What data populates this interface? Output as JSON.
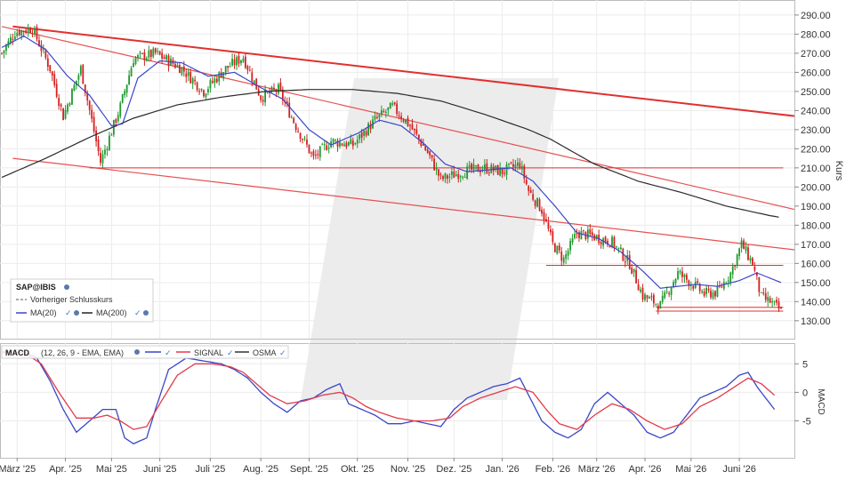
{
  "chart_data": [
    {
      "type": "candlestick",
      "symbol": "SAP@IBIS",
      "ylabel": "Kurs",
      "ylim": [
        122,
        296
      ],
      "y_ticks": [
        130,
        140,
        150,
        160,
        170,
        180,
        190,
        200,
        210,
        220,
        230,
        240,
        250,
        260,
        270,
        280,
        290
      ],
      "y_tick_labels": [
        "130.00",
        "140.00",
        "150.00",
        "160.00",
        "170.00",
        "180.00",
        "190.00",
        "200.00",
        "210.00",
        "220.00",
        "230.00",
        "240.00",
        "250.00",
        "260.00",
        "270.00",
        "280.00",
        "290.00"
      ],
      "x_tick_labels": [
        "März '25",
        "Apr. '25",
        "Mai '25",
        "Juni '25",
        "Juli '25",
        "Aug. '25",
        "Sept. '25",
        "Okt. '25",
        "Nov. '25",
        "Dez. '25",
        "Jan. '26",
        "Feb. '26",
        "März '26",
        "Apr. '26",
        "Mai '26",
        "Juni '26"
      ],
      "x_tick_index": [
        7,
        29,
        50,
        72,
        95,
        118,
        140,
        162,
        185,
        206,
        228,
        251,
        271,
        293,
        314,
        336
      ],
      "session_count": 356,
      "legend": {
        "symbol": "SAP@IBIS",
        "prev_close": "Vorheriger Schlusskurs",
        "ma20": "MA(20)",
        "ma200": "MA(200)"
      },
      "price_path": [
        [
          0,
          270
        ],
        [
          6,
          281
        ],
        [
          14,
          283
        ],
        [
          22,
          262
        ],
        [
          28,
          237
        ],
        [
          36,
          262
        ],
        [
          45,
          213
        ],
        [
          54,
          242
        ],
        [
          60,
          267
        ],
        [
          70,
          270
        ],
        [
          82,
          262
        ],
        [
          92,
          250
        ],
        [
          102,
          262
        ],
        [
          110,
          268
        ],
        [
          118,
          247
        ],
        [
          126,
          251
        ],
        [
          134,
          232
        ],
        [
          142,
          215
        ],
        [
          150,
          224
        ],
        [
          160,
          222
        ],
        [
          170,
          235
        ],
        [
          178,
          242
        ],
        [
          186,
          232
        ],
        [
          194,
          218
        ],
        [
          200,
          204
        ],
        [
          210,
          208
        ],
        [
          220,
          210
        ],
        [
          228,
          208
        ],
        [
          236,
          212
        ],
        [
          240,
          198
        ],
        [
          246,
          188
        ],
        [
          251,
          170
        ],
        [
          256,
          162
        ],
        [
          262,
          176
        ],
        [
          270,
          174
        ],
        [
          278,
          171
        ],
        [
          286,
          160
        ],
        [
          292,
          143
        ],
        [
          300,
          138
        ],
        [
          308,
          155
        ],
        [
          316,
          148
        ],
        [
          320,
          144
        ],
        [
          326,
          145
        ],
        [
          332,
          155
        ],
        [
          337,
          170
        ],
        [
          342,
          160
        ],
        [
          346,
          142
        ],
        [
          350,
          140
        ],
        [
          355,
          135
        ]
      ],
      "ma20_path": [
        [
          0,
          273
        ],
        [
          10,
          279
        ],
        [
          20,
          272
        ],
        [
          30,
          258
        ],
        [
          40,
          248
        ],
        [
          50,
          232
        ],
        [
          55,
          233
        ],
        [
          62,
          257
        ],
        [
          72,
          266
        ],
        [
          82,
          265
        ],
        [
          94,
          258
        ],
        [
          106,
          260
        ],
        [
          118,
          252
        ],
        [
          128,
          246
        ],
        [
          140,
          230
        ],
        [
          150,
          222
        ],
        [
          162,
          228
        ],
        [
          172,
          235
        ],
        [
          182,
          232
        ],
        [
          192,
          223
        ],
        [
          202,
          212
        ],
        [
          212,
          208
        ],
        [
          222,
          209
        ],
        [
          232,
          210
        ],
        [
          242,
          203
        ],
        [
          252,
          190
        ],
        [
          262,
          176
        ],
        [
          272,
          173
        ],
        [
          282,
          166
        ],
        [
          292,
          156
        ],
        [
          300,
          147
        ],
        [
          308,
          148
        ],
        [
          316,
          149
        ],
        [
          326,
          148
        ],
        [
          336,
          151
        ],
        [
          344,
          155
        ],
        [
          355,
          150
        ]
      ],
      "ma200_path": [
        [
          0,
          205
        ],
        [
          20,
          215
        ],
        [
          40,
          226
        ],
        [
          60,
          236
        ],
        [
          80,
          243
        ],
        [
          100,
          247
        ],
        [
          120,
          250
        ],
        [
          140,
          251
        ],
        [
          160,
          251
        ],
        [
          180,
          249
        ],
        [
          200,
          245
        ],
        [
          220,
          238
        ],
        [
          240,
          230
        ],
        [
          250,
          225
        ],
        [
          270,
          212
        ],
        [
          290,
          203
        ],
        [
          310,
          197
        ],
        [
          330,
          190
        ],
        [
          350,
          185
        ],
        [
          355,
          184
        ]
      ],
      "trend_lines": [
        {
          "name": "upper-trend",
          "from": [
            5,
            284
          ],
          "to": [
            356,
            237
          ],
          "color": "#e03030"
        },
        {
          "name": "resistance-trend",
          "from": [
            0,
            284
          ],
          "to": [
            356,
            188
          ],
          "color": "#e65050"
        },
        {
          "name": "lower-trend",
          "from": [
            5,
            215
          ],
          "to": [
            356,
            167
          ],
          "color": "#e65050"
        }
      ],
      "horizontal_lines": [
        {
          "name": "support-210",
          "value": 210,
          "from": 40,
          "to": 356
        },
        {
          "name": "support-159",
          "value": 159,
          "from": 248,
          "to": 356
        },
        {
          "name": "support-137",
          "value": 137,
          "from": 298,
          "to": 356
        },
        {
          "name": "support-135",
          "value": 135,
          "from": 298,
          "to": 356
        }
      ],
      "colors": {
        "up": "#1f9a2f",
        "down": "#d42020",
        "ma20": "#3a47c8",
        "ma200": "#2b2b2b",
        "trend": "#e03030"
      }
    },
    {
      "type": "line",
      "indicator": "MACD",
      "params": "(12, 26, 9 - EMA, EMA)",
      "ylabel": "MACD",
      "ylim": [
        -11,
        8
      ],
      "y_ticks": [
        5,
        0,
        -5
      ],
      "y_tick_labels": [
        "5",
        "0",
        "-5"
      ],
      "series": [
        {
          "name": "MACD",
          "color": "#3a47c8",
          "path": [
            [
              0,
              7
            ],
            [
              8,
              7.5
            ],
            [
              16,
              6
            ],
            [
              22,
              2
            ],
            [
              28,
              -3
            ],
            [
              34,
              -7
            ],
            [
              40,
              -5
            ],
            [
              46,
              -3
            ],
            [
              52,
              -3
            ],
            [
              56,
              -8
            ],
            [
              60,
              -9
            ],
            [
              66,
              -8
            ],
            [
              70,
              -3
            ],
            [
              76,
              4
            ],
            [
              84,
              6
            ],
            [
              92,
              5.5
            ],
            [
              100,
              5
            ],
            [
              106,
              4
            ],
            [
              112,
              2.5
            ],
            [
              118,
              0
            ],
            [
              124,
              -2
            ],
            [
              130,
              -3.5
            ],
            [
              136,
              -1.5
            ],
            [
              142,
              -1
            ],
            [
              148,
              0.5
            ],
            [
              154,
              1.5
            ],
            [
              158,
              -2
            ],
            [
              164,
              -3
            ],
            [
              170,
              -4
            ],
            [
              176,
              -5.5
            ],
            [
              182,
              -5.5
            ],
            [
              188,
              -5
            ],
            [
              194,
              -5.5
            ],
            [
              200,
              -6
            ],
            [
              206,
              -3
            ],
            [
              212,
              -1
            ],
            [
              218,
              0
            ],
            [
              224,
              1
            ],
            [
              230,
              1.5
            ],
            [
              236,
              2.5
            ],
            [
              242,
              -2
            ],
            [
              246,
              -5
            ],
            [
              252,
              -7
            ],
            [
              258,
              -8
            ],
            [
              264,
              -6.5
            ],
            [
              270,
              -2
            ],
            [
              276,
              0
            ],
            [
              282,
              -2
            ],
            [
              288,
              -4
            ],
            [
              294,
              -7
            ],
            [
              300,
              -8
            ],
            [
              306,
              -7
            ],
            [
              312,
              -4
            ],
            [
              318,
              -1
            ],
            [
              324,
              0
            ],
            [
              330,
              1
            ],
            [
              336,
              3
            ],
            [
              340,
              3.5
            ],
            [
              344,
              1
            ],
            [
              348,
              -1
            ],
            [
              352,
              -3
            ]
          ]
        },
        {
          "name": "SIGNAL",
          "color": "#e23a4a",
          "path": [
            [
              0,
              7
            ],
            [
              10,
              7
            ],
            [
              18,
              5
            ],
            [
              26,
              0
            ],
            [
              34,
              -4.5
            ],
            [
              42,
              -4.5
            ],
            [
              48,
              -4
            ],
            [
              54,
              -5
            ],
            [
              60,
              -6.5
            ],
            [
              66,
              -6
            ],
            [
              72,
              -2
            ],
            [
              80,
              3
            ],
            [
              88,
              5
            ],
            [
              96,
              5
            ],
            [
              104,
              4.5
            ],
            [
              110,
              3.5
            ],
            [
              116,
              1.5
            ],
            [
              122,
              -0.5
            ],
            [
              130,
              -2
            ],
            [
              138,
              -1.5
            ],
            [
              146,
              -0.5
            ],
            [
              154,
              0
            ],
            [
              160,
              -1
            ],
            [
              166,
              -2.5
            ],
            [
              172,
              -3.5
            ],
            [
              180,
              -4.5
            ],
            [
              188,
              -5
            ],
            [
              196,
              -5
            ],
            [
              204,
              -4.5
            ],
            [
              210,
              -2.5
            ],
            [
              218,
              -1
            ],
            [
              226,
              0
            ],
            [
              234,
              1
            ],
            [
              242,
              0
            ],
            [
              248,
              -3
            ],
            [
              254,
              -5.5
            ],
            [
              262,
              -6.5
            ],
            [
              270,
              -4
            ],
            [
              278,
              -2
            ],
            [
              286,
              -3
            ],
            [
              294,
              -5
            ],
            [
              302,
              -6.5
            ],
            [
              310,
              -5.5
            ],
            [
              318,
              -2.5
            ],
            [
              326,
              -1
            ],
            [
              334,
              1
            ],
            [
              340,
              2.5
            ],
            [
              346,
              1.5
            ],
            [
              352,
              -0.5
            ]
          ]
        },
        {
          "name": "OSMA",
          "color": "#333333",
          "path": []
        }
      ],
      "colors": {
        "macd": "#3a47c8",
        "signal": "#e23a4a",
        "osma": "#333333"
      }
    }
  ]
}
